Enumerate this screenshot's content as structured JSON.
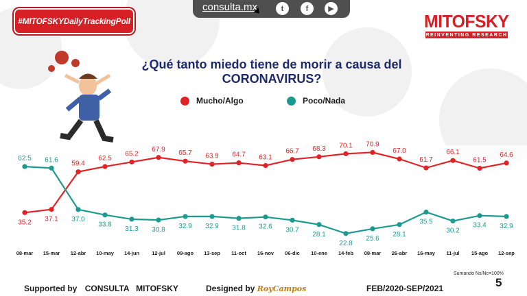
{
  "header": {
    "hashtag": "#MITOFSKYDailyTrackingPoll",
    "url": "consulta.mx",
    "brand": "MITOFSKY",
    "tagline": "REINVENTING RESEARCH",
    "social_icons": [
      "twitter-icon",
      "facebook-icon",
      "youtube-icon"
    ]
  },
  "question": "¿Qué tanto miedo tiene de morir a causa del CORONAVIRUS?",
  "colors": {
    "red": "#e32226",
    "teal": "#1b9a8f",
    "brand": "#d71f26",
    "title": "#1d2a6b"
  },
  "chart_data": {
    "type": "line",
    "title": "¿Qué tanto miedo tiene de morir a causa del CORONAVIRUS?",
    "categories": [
      "08-mar",
      "15-mar",
      "12-abr",
      "10-may",
      "14-jun",
      "12-jul",
      "09-ago",
      "13-sep",
      "11-oct",
      "16-nov",
      "06-dic",
      "10-ene",
      "14-feb",
      "08-mar",
      "26-abr",
      "16-may",
      "11-jul",
      "15-ago",
      "12-sep"
    ],
    "series": [
      {
        "name": "Mucho/Algo",
        "color": "#e32226",
        "label_position": "above",
        "values": [
          35.2,
          37.1,
          59.4,
          62.5,
          65.2,
          67.9,
          65.7,
          63.9,
          64.7,
          63.1,
          66.7,
          68.3,
          70.1,
          70.9,
          67.0,
          61.7,
          66.1,
          61.5,
          64.6
        ]
      },
      {
        "name": "Poco/Nada",
        "color": "#1b9a8f",
        "label_position": "below",
        "values": [
          62.5,
          61.6,
          37.0,
          33.8,
          31.3,
          30.8,
          32.9,
          32.9,
          31.8,
          32.6,
          30.7,
          28.1,
          22.8,
          25.6,
          28.1,
          35.5,
          30.2,
          33.4,
          32.9
        ]
      }
    ],
    "label_overrides": {
      "0-0": "below",
      "1-0": "above",
      "0-1": "below",
      "1-1": "above"
    },
    "xlabel": "",
    "ylabel": "",
    "ylim": [
      15,
      80
    ],
    "grid": false,
    "legend": "top-center",
    "note": "Sumando Ns/Nc=100%"
  },
  "footer": {
    "supported_prefix": "Supported by",
    "supported_by": "CONSULTA   MITOFSKY",
    "designed_prefix": "Designed by",
    "designer": "RoyCampos",
    "period": "FEB/2020-SEP/2021",
    "page": "5"
  }
}
